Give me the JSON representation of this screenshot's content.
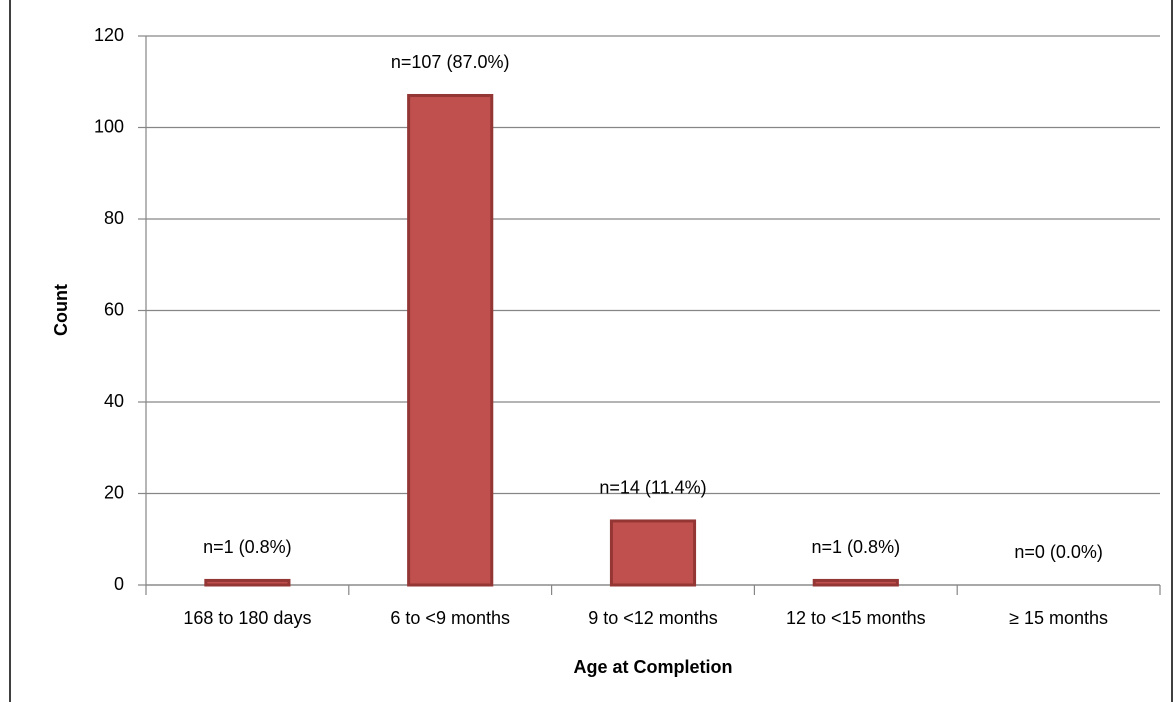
{
  "chart_data": {
    "type": "bar",
    "x_label": "Age at Completion",
    "y_label": "Count",
    "categories": [
      "168 to 180 days",
      "6 to <9 months",
      "9 to <12 months",
      "12 to <15 months",
      "≥ 15 months"
    ],
    "values": [
      1,
      107,
      14,
      1,
      0
    ],
    "value_labels": [
      "n=1 (0.8%)",
      "n=107 (87.0%)",
      "n=14 (11.4%)",
      "n=1 (0.8%)",
      "n=0 (0.0%)"
    ],
    "color": "#c0504d",
    "edge_color": "#943634",
    "ylim": [
      0,
      120
    ],
    "yticks": [
      0,
      20,
      40,
      60,
      80,
      100,
      120
    ],
    "grid": true
  }
}
